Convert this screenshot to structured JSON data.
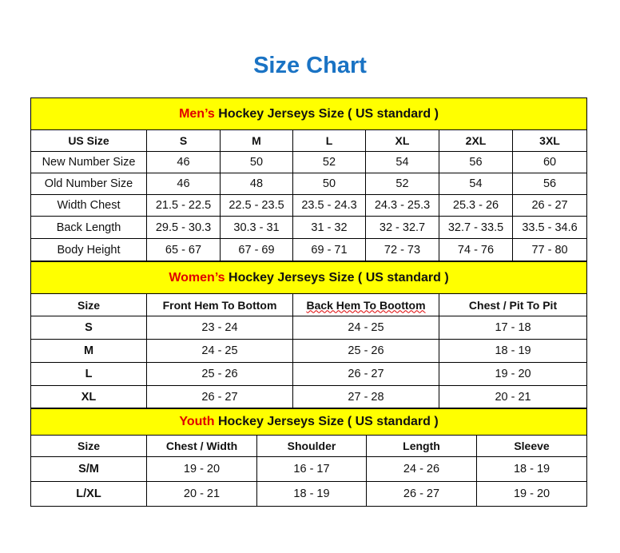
{
  "title": "Size Chart",
  "mens": {
    "title_red": "Men’s",
    "title_rest": " Hockey Jerseys Size ( US standard )",
    "columns": [
      "US Size",
      "S",
      "M",
      "L",
      "XL",
      "2XL",
      "3XL"
    ],
    "rows": [
      [
        "New Number Size",
        "46",
        "50",
        "52",
        "54",
        "56",
        "60"
      ],
      [
        "Old Number Size",
        "46",
        "48",
        "50",
        "52",
        "54",
        "56"
      ],
      [
        "Width Chest",
        "21.5 - 22.5",
        "22.5 - 23.5",
        "23.5 - 24.3",
        "24.3 - 25.3",
        "25.3 - 26",
        "26 - 27"
      ],
      [
        "Back Length",
        "29.5 - 30.3",
        "30.3 - 31",
        "31 - 32",
        "32 - 32.7",
        "32.7 - 33.5",
        "33.5 - 34.6"
      ],
      [
        "Body Height",
        "65 - 67",
        "67 - 69",
        "69 - 71",
        "72 - 73",
        "74 - 76",
        "77 - 80"
      ]
    ]
  },
  "womens": {
    "title_red": "Women’s",
    "title_rest": " Hockey Jerseys Size ( US standard )",
    "columns": [
      "Size",
      "Front Hem To Bottom",
      "Back Hem To Boottom",
      "Chest / Pit To Pit"
    ],
    "rows": [
      [
        "S",
        "23 - 24",
        "24 - 25",
        "17 - 18"
      ],
      [
        "M",
        "24 - 25",
        "25 - 26",
        "18 - 19"
      ],
      [
        "L",
        "25 - 26",
        "26 - 27",
        "19 - 20"
      ],
      [
        "XL",
        "26 - 27",
        "27 - 28",
        "20 - 21"
      ]
    ]
  },
  "youth": {
    "title_red": "Youth",
    "title_rest": " Hockey Jerseys Size ( US standard )",
    "columns": [
      "Size",
      "Chest / Width",
      "Shoulder",
      "Length",
      "Sleeve"
    ],
    "rows": [
      [
        "S/M",
        "19 - 20",
        "16 - 17",
        "24 - 26",
        "18 - 19"
      ],
      [
        "L/XL",
        "20 - 21",
        "18 - 19",
        "26 - 27",
        "19 - 20"
      ]
    ]
  }
}
